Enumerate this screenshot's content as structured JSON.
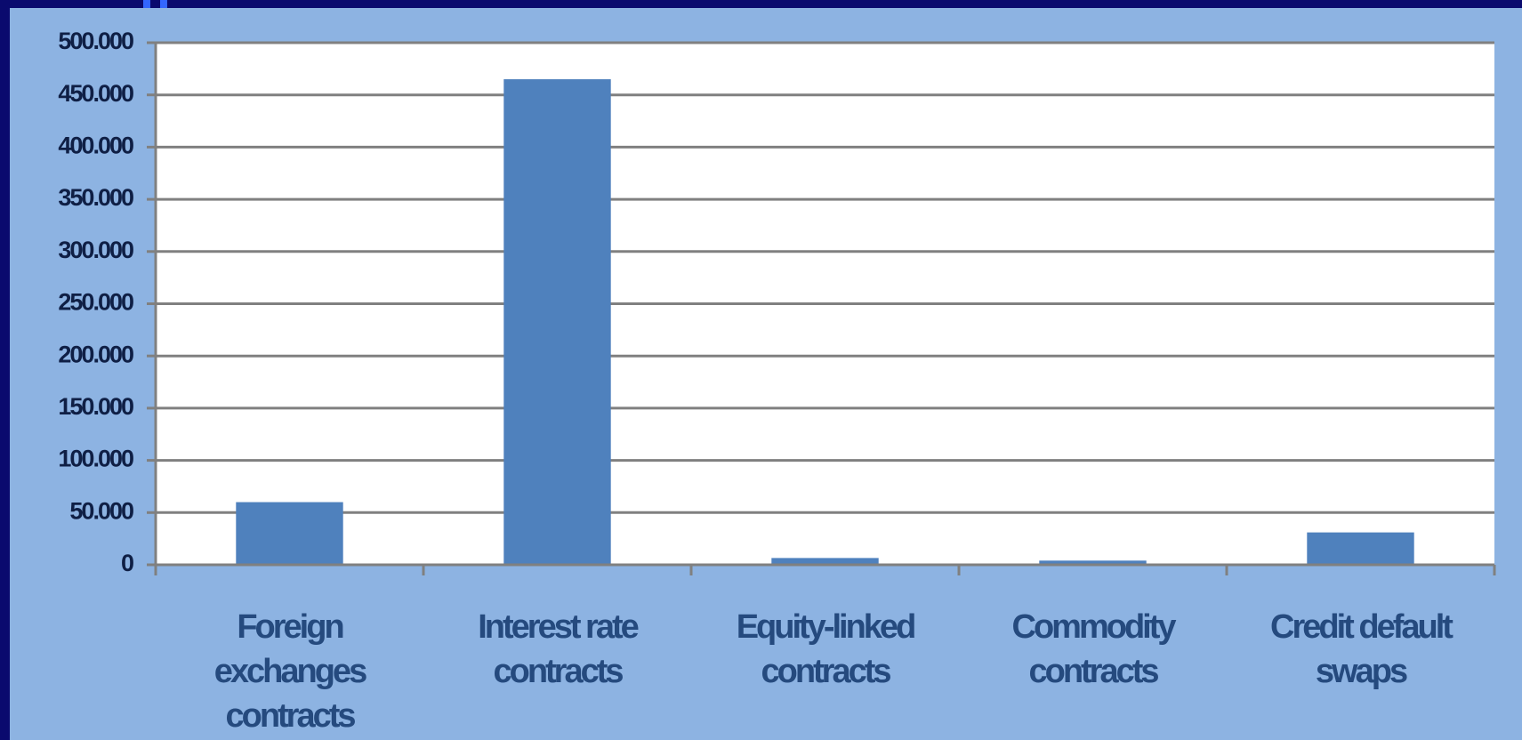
{
  "chart_data": {
    "type": "bar",
    "categories": [
      "Foreign exchanges contracts",
      "Interest rate contracts",
      "Equity-linked contracts",
      "Commodity contracts",
      "Credit default swaps"
    ],
    "values": [
      60000,
      465000,
      6500,
      4000,
      31000
    ],
    "color": "#4f81bd",
    "ylim": [
      0,
      500000
    ],
    "yticks": [
      0,
      {
        "value": 50000,
        "label": "50.000"
      },
      {
        "value": 100000,
        "label": "100.000"
      },
      {
        "value": 150000,
        "label": "150.000"
      },
      {
        "value": 200000,
        "label": "200.000"
      },
      {
        "value": 250000,
        "label": "250.000"
      },
      {
        "value": 300000,
        "label": "300.000"
      },
      {
        "value": 350000,
        "label": "350.000"
      },
      {
        "value": 400000,
        "label": "400.000"
      },
      {
        "value": 450000,
        "label": "450.000"
      },
      {
        "value": 500000,
        "label": "500.000"
      }
    ],
    "grid": true
  }
}
